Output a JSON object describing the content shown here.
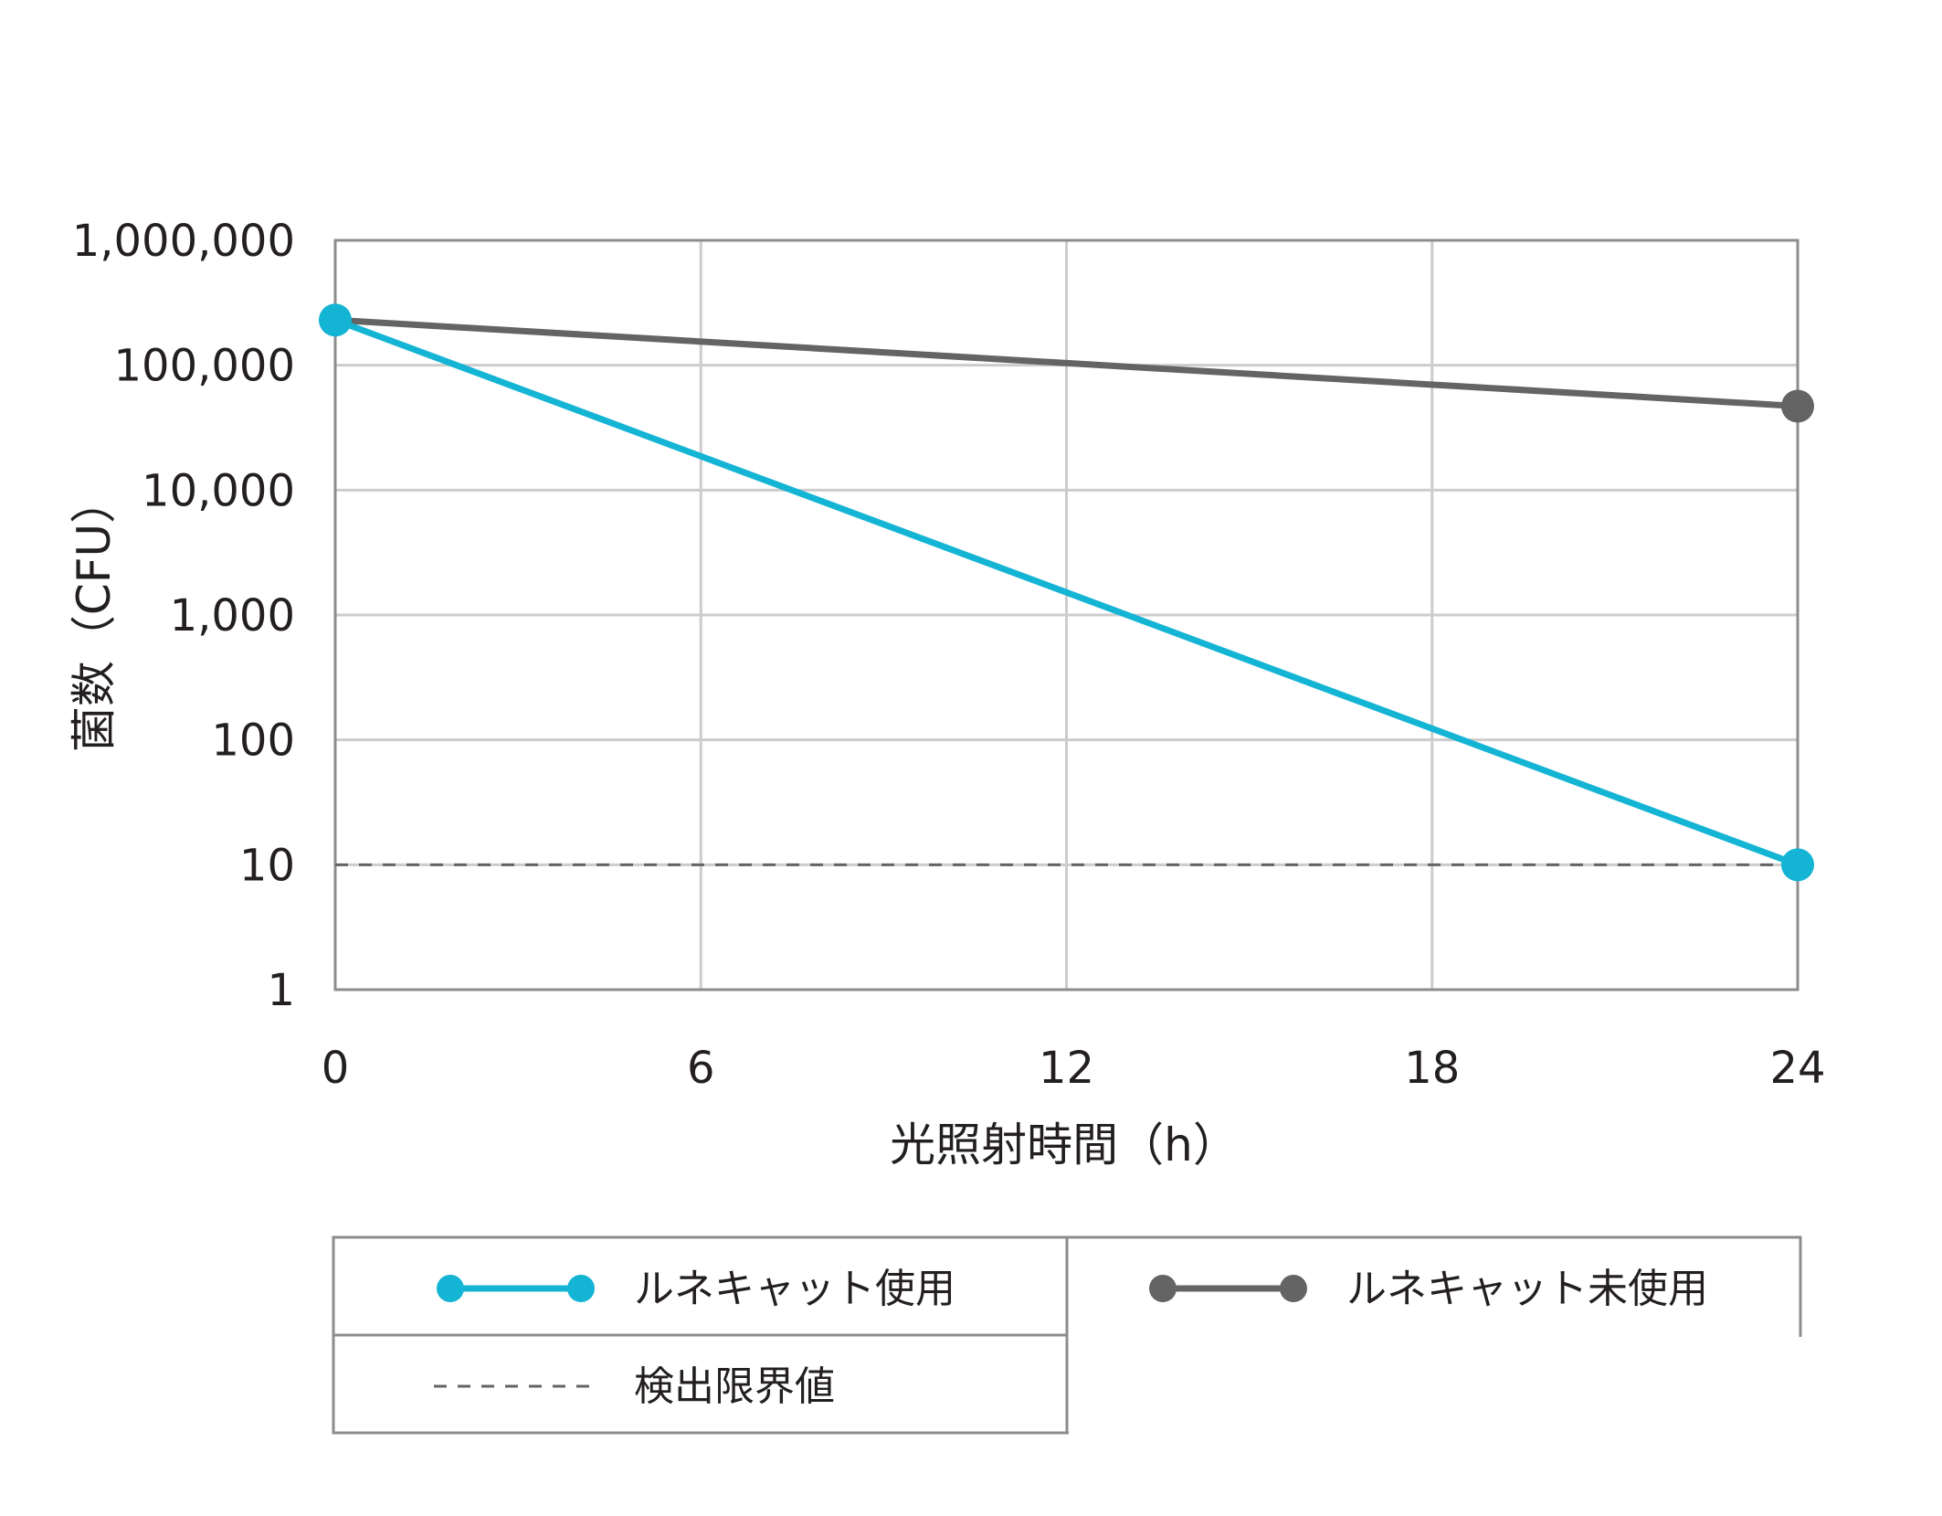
{
  "chart_data": {
    "type": "line",
    "xlabel": "光照射時間（h）",
    "ylabel": "菌数（CFU）",
    "x_ticks": [
      "0",
      "6",
      "12",
      "18",
      "24"
    ],
    "y_ticks": [
      "1",
      "10",
      "100",
      "1,000",
      "10,000",
      "100,000",
      "1,000,000"
    ],
    "xlim": [
      0,
      24
    ],
    "ylim": [
      1,
      1000000
    ],
    "y_scale": "log",
    "grid": true,
    "legend_position": "bottom",
    "series": [
      {
        "name": "ルネキャット使用",
        "color": "#14b4d4",
        "markers": true,
        "x": [
          0,
          24
        ],
        "y": [
          230000,
          10
        ]
      },
      {
        "name": "ルネキャット未使用",
        "color": "#646464",
        "markers": true,
        "x": [
          0,
          24
        ],
        "y": [
          230000,
          47000
        ]
      }
    ],
    "reference_lines": [
      {
        "name": "検出限界値",
        "y": 10,
        "style": "dashed",
        "color": "#646464"
      }
    ]
  }
}
